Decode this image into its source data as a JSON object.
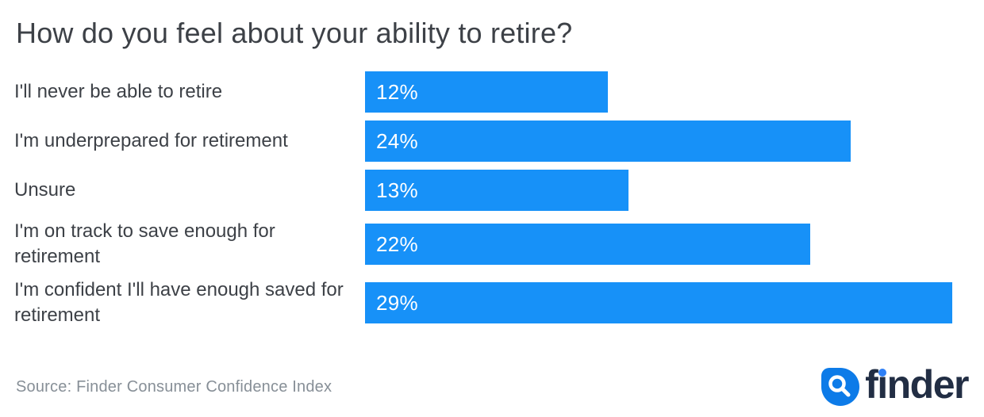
{
  "title": "How do you feel about your ability to retire?",
  "source": "Source: Finder Consumer Confidence Index",
  "logo": {
    "brand": "finder",
    "icon": "magnifier-drop-icon",
    "text_before_dot_i": "f",
    "dotless_i": "ı",
    "text_after_i": "nder"
  },
  "colors": {
    "bar_blue": "#1791f8",
    "text_dark": "#3d4147",
    "source_gray": "#878f97",
    "logo_navy": "#222e44",
    "logo_icon_blue": "#0d7be8",
    "i_dot_blue": "#2e7ff5"
  },
  "chart_data": {
    "type": "bar",
    "orientation": "horizontal",
    "title": "How do you feel about your ability to retire?",
    "categories": [
      "I'll never be able to retire",
      "I'm underprepared for retirement",
      "Unsure",
      "I'm on track to save enough for retirement",
      "I'm confident I'll have enough saved for retirement"
    ],
    "values": [
      12,
      24,
      13,
      22,
      29
    ],
    "value_labels": [
      "12%",
      "24%",
      "13%",
      "22%",
      "29%"
    ],
    "value_suffix": "%",
    "xlim": [
      0,
      30
    ],
    "bar_color": "#1791f8",
    "value_label_position": "inside-left",
    "grid": false,
    "legend": false,
    "axis_lines": false
  }
}
